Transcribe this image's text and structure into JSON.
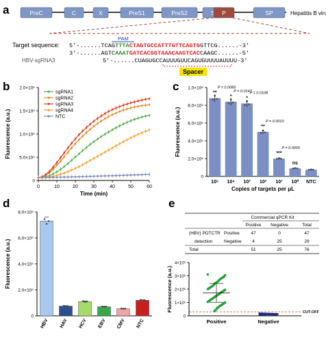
{
  "colors": {
    "genome_box": "#7f97c4",
    "p_box": "#a04a3c",
    "red": "#e02020",
    "green": "#2e8b2e",
    "blue": "#1f3fb0",
    "spacer_bg": "#f5e400",
    "sg1": "#4cae4c",
    "sg2": "#e0892a",
    "sg3": "#d93a1e",
    "sg4": "#f0a030",
    "ntc": "#7d8ab5",
    "bar_c": "#7c8fc5",
    "bar_d": [
      "#a9c8ef",
      "#2e4f8f",
      "#a3dc6a",
      "#3aa84a",
      "#f2a4a4",
      "#c71e1e"
    ],
    "pos_dots": "#27a03a",
    "neg_dots": "#2a3fa8"
  },
  "panel_a": {
    "label": "a",
    "virus_label": "Hepatitis B virus",
    "genes": [
      "PreC",
      "C",
      "X",
      "PreS1",
      "PreS2",
      "S",
      "P",
      "SP"
    ],
    "target_label": "Target sequence:",
    "pam_label": "PAM",
    "line1": {
      "prefix": "5'-......",
      "black1": "TCAG",
      "pam": "TTTA",
      "target": "CTAGTGCCATTTGTTCAGTG",
      "black2": "GTTCG",
      "suffix": "......-3'"
    },
    "line2": {
      "prefix": "3'-......",
      "black1": "AGTC",
      "pam": "AAAT",
      "target": "GATCACGGTAAACAAGTCAC",
      "black2": "CAAGC",
      "suffix": "......-5'"
    },
    "sgrna_label": "HBV-sgRNA3",
    "sgrna_prefix": "5'-......",
    "sgrna_spacer": "CUAGUGCCAUUUGUUCAGUG",
    "sgrna_suffix": "UUUUAUUUU-3'",
    "spacer_label": "Spacer"
  },
  "panel_b": {
    "label": "b",
    "chart_data": {
      "type": "line",
      "xlabel": "Time (min)",
      "ylabel": "Fluorescence (a.u.)",
      "xlim": [
        0,
        60
      ],
      "ylim": [
        0,
        2000000
      ],
      "x_ticks": [
        0,
        10,
        20,
        30,
        40,
        50,
        60
      ],
      "y_ticks": [
        "0",
        "5.0×10⁵",
        "1.0×10⁶",
        "1.5×10⁶",
        "2.0×10⁶"
      ],
      "legend_position": "top-left",
      "x": [
        0,
        2,
        4,
        6,
        8,
        10,
        12,
        14,
        16,
        18,
        20,
        22,
        24,
        26,
        28,
        30,
        32,
        34,
        36,
        38,
        40,
        42,
        44,
        46,
        48,
        50,
        52,
        54,
        56,
        58,
        60
      ],
      "series": [
        {
          "name": "sgRNA1",
          "values": [
            60000,
            65000,
            80000,
            105000,
            140000,
            185000,
            240000,
            300000,
            365000,
            435000,
            505000,
            575000,
            645000,
            710000,
            775000,
            835000,
            890000,
            945000,
            995000,
            1045000,
            1090000,
            1135000,
            1175000,
            1215000,
            1250000,
            1285000,
            1315000,
            1340000,
            1365000,
            1385000,
            1400000
          ]
        },
        {
          "name": "sgRNA2",
          "values": [
            60000,
            75000,
            110000,
            165000,
            240000,
            325000,
            415000,
            510000,
            605000,
            700000,
            790000,
            875000,
            955000,
            1030000,
            1100000,
            1165000,
            1225000,
            1280000,
            1330000,
            1375000,
            1415000,
            1450000,
            1485000,
            1515000,
            1540000,
            1560000,
            1580000,
            1595000,
            1610000,
            1620000,
            1630000
          ]
        },
        {
          "name": "sgRNA3",
          "values": [
            60000,
            80000,
            125000,
            195000,
            285000,
            385000,
            490000,
            595000,
            700000,
            800000,
            895000,
            985000,
            1065000,
            1140000,
            1210000,
            1275000,
            1335000,
            1390000,
            1440000,
            1485000,
            1525000,
            1560000,
            1590000,
            1620000,
            1645000,
            1670000,
            1690000,
            1710000,
            1730000,
            1745000,
            1760000
          ]
        },
        {
          "name": "sgRNA4",
          "values": [
            60000,
            62000,
            66000,
            75000,
            90000,
            110000,
            135000,
            160000,
            190000,
            225000,
            260000,
            300000,
            340000,
            385000,
            430000,
            475000,
            520000,
            565000,
            610000,
            655000,
            700000,
            745000,
            790000,
            835000,
            875000,
            915000,
            955000,
            990000,
            1025000,
            1060000,
            1090000
          ]
        },
        {
          "name": "NTC",
          "values": [
            60000,
            62000,
            63000,
            65000,
            67000,
            69000,
            71000,
            73000,
            75000,
            77000,
            79000,
            81000,
            83000,
            85000,
            88000,
            90000,
            93000,
            95000,
            98000,
            100000,
            103000,
            105000,
            108000,
            110000,
            113000,
            116000,
            119000,
            122000,
            125000,
            128000,
            131000
          ]
        }
      ]
    }
  },
  "panel_c": {
    "label": "c",
    "chart_data": {
      "type": "bar",
      "xlabel": "Copies of targets per μL",
      "ylabel": "Fluorescence (a.u.)",
      "ylim": [
        0,
        1000000
      ],
      "y_ticks": [
        "0",
        "2.0×10⁵",
        "4.0×10⁵",
        "6.0×10⁵",
        "8.0×10⁵",
        "1.0×10⁶"
      ],
      "categories": [
        "10⁵",
        "10⁴",
        "10³",
        "10²",
        "10¹",
        "10⁰",
        "NTC"
      ],
      "values": [
        880000,
        840000,
        820000,
        500000,
        200000,
        90000,
        75000
      ],
      "annotations": [
        {
          "p": "P = 0.0085",
          "stars": "**"
        },
        {
          "p": "P = 0.0147",
          "stars": "*"
        },
        {
          "p": "P = 0.0108",
          "stars": "*"
        },
        {
          "p": "P = 0.0010",
          "stars": "**"
        },
        {
          "p": "P = 0.0005",
          "stars": "***"
        },
        {
          "p": "",
          "stars": "ns"
        },
        {
          "p": "",
          "stars": ""
        }
      ]
    }
  },
  "panel_d": {
    "label": "d",
    "chart_data": {
      "type": "bar",
      "ylabel": "Fluorescence (a.u.)",
      "ylim": [
        0,
        800000
      ],
      "y_ticks": [
        "0",
        "2.0×10⁵",
        "4.0×10⁵",
        "6.0×10⁵",
        "8.0×10⁵"
      ],
      "categories": [
        "HBV",
        "HAV",
        "HCV",
        "EBV",
        "CMV",
        "NTC"
      ],
      "values": [
        730000,
        75000,
        110000,
        70000,
        55000,
        120000
      ]
    }
  },
  "panel_e": {
    "label": "e",
    "table": {
      "header": "Commercial qPCR Kit",
      "subheaders": [
        "Positive",
        "Negative",
        "Total"
      ],
      "row_label_1": "(HBV) PDTCTR",
      "row_label_2": "detection",
      "rows": [
        {
          "label": "Positive",
          "values": [
            "47",
            "0",
            "47"
          ]
        },
        {
          "label": "Negative",
          "values": [
            "4",
            "25",
            "29"
          ]
        }
      ],
      "total_label": "Total",
      "total_values": [
        "51",
        "25",
        "76"
      ]
    },
    "chart_data": {
      "type": "scatter",
      "ylabel": "Fluorescence (a.u.)",
      "ylim": [
        0,
        4000000
      ],
      "y_ticks": [
        "0",
        "1×10⁶",
        "2×10⁶",
        "3×10⁶",
        "4×10⁶"
      ],
      "categories": [
        "Positive",
        "Negative"
      ],
      "cutoff_label": "CUT-OFF",
      "cutoff": 300000,
      "positive_values": [
        3100000,
        3050000,
        2950000,
        2900000,
        2850000,
        2800000,
        2750000,
        2700000,
        2600000,
        2550000,
        2500000,
        2450000,
        2400000,
        2300000,
        2250000,
        2200000,
        2150000,
        2100000,
        2050000,
        2000000,
        1950000,
        1900000,
        1850000,
        1800000,
        1750000,
        1700000,
        1650000,
        1600000,
        1550000,
        1500000,
        1450000,
        1400000,
        1350000,
        1300000,
        1250000,
        1200000,
        1150000,
        1100000,
        1050000,
        1000000,
        950000,
        900000,
        850000,
        800000,
        750000,
        700000,
        650000,
        600000,
        500000,
        420000,
        350000
      ],
      "negative_values": [
        180000,
        170000,
        165000,
        160000,
        155000,
        150000,
        145000,
        140000,
        135000,
        130000,
        128000,
        125000,
        122000,
        120000,
        118000,
        115000,
        112000,
        110000,
        108000,
        105000,
        102000,
        100000,
        98000,
        95000,
        92000
      ]
    }
  }
}
